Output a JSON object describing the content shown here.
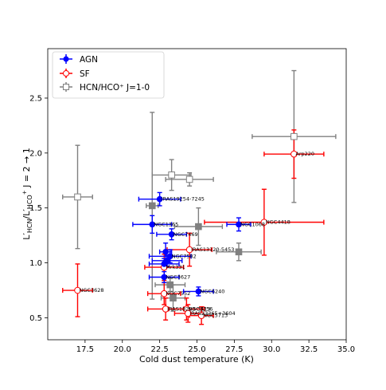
{
  "chart_data": {
    "type": "scatter",
    "title": "",
    "xlabel": "Cold dust temperature (K)",
    "ylabel_main": "L′",
    "ylabel_sub1": "HCN",
    "ylabel_mid": "/L′",
    "ylabel_sub2": "HCO",
    "ylabel_sup": "+",
    "ylabel_tail": " J = 2 → 1",
    "xlim": [
      15.0,
      35.0
    ],
    "ylim": [
      0.3,
      2.95
    ],
    "xticks": [
      "17.5",
      "20.0",
      "22.5",
      "25.0",
      "27.5",
      "30.0",
      "32.5",
      "35.0"
    ],
    "xtick_values": [
      17.5,
      20.0,
      22.5,
      25.0,
      27.5,
      30.0,
      32.5,
      35.0
    ],
    "yticks": [
      "0.5",
      "1.0",
      "1.5",
      "2.0",
      "2.5"
    ],
    "ytick_values": [
      0.5,
      1.0,
      1.5,
      2.0,
      2.5
    ],
    "grid": false,
    "legend_position": "top-left",
    "legend": [
      {
        "label": "AGN",
        "color": "#0000ff",
        "marker": "filled-circle"
      },
      {
        "label": "SF",
        "color": "#ff0000",
        "marker": "open-circle"
      },
      {
        "label": "HCN/HCO⁺ J=1-0",
        "color": "#808080",
        "marker": "open-square"
      }
    ],
    "series": [
      {
        "name": "AGN",
        "color": "#0000ff",
        "points": [
          {
            "label": "IRAS19254-7245",
            "x": 22.5,
            "y": 1.58,
            "xerr": 1.4,
            "yerr": 0.06
          },
          {
            "label": "NGC1365",
            "x": 22.0,
            "y": 1.35,
            "xerr": 1.3,
            "yerr": 0.08
          },
          {
            "label": "NGC7469",
            "x": 23.3,
            "y": 1.26,
            "xerr": 1.0,
            "yerr": 0.05
          },
          {
            "label": "NGC1068",
            "x": 27.8,
            "y": 1.35,
            "xerr": 0.8,
            "yerr": 0.06
          },
          {
            "label": "NGC7582",
            "x": 23.2,
            "y": 1.06,
            "xerr": 1.4,
            "yerr": 0.06
          },
          {
            "label": "",
            "x": 23.0,
            "y": 1.02,
            "xerr": 1.0,
            "yerr": 0.05
          },
          {
            "label": "",
            "x": 22.8,
            "y": 0.99,
            "xerr": 1.0,
            "yerr": 0.05
          },
          {
            "label": "NGC3627",
            "x": 22.8,
            "y": 0.87,
            "xerr": 1.0,
            "yerr": 0.05
          },
          {
            "label": "NGC6240",
            "x": 25.1,
            "y": 0.74,
            "xerr": 1.0,
            "yerr": 0.04
          },
          {
            "label": "",
            "x": 22.9,
            "y": 1.1,
            "xerr": 0.4,
            "yerr": 0.08
          }
        ]
      },
      {
        "name": "SF",
        "color": "#ff0000",
        "points": [
          {
            "label": "NGC3628",
            "x": 17.0,
            "y": 0.75,
            "xerr": 1.0,
            "yerr": 0.24
          },
          {
            "label": "Arp220",
            "x": 31.5,
            "y": 1.99,
            "xerr": 2.0,
            "yerr": 0.22
          },
          {
            "label": "NGC4418",
            "x": 29.5,
            "y": 1.37,
            "xerr": 4.0,
            "yerr": 0.3
          },
          {
            "label": "IRAS13120-5453",
            "x": 24.5,
            "y": 1.12,
            "xerr": 1.5,
            "yerr": 0.15
          },
          {
            "label": "Mrk331",
            "x": 22.8,
            "y": 0.96,
            "xerr": 1.3,
            "yerr": 0.12
          },
          {
            "label": "NGC7552",
            "x": 22.8,
            "y": 0.72,
            "xerr": 1.1,
            "yerr": 0.1
          },
          {
            "label": "IRAS18293-3413",
            "x": 22.9,
            "y": 0.58,
            "xerr": 1.2,
            "yerr": 0.1
          },
          {
            "label": "NGC3256",
            "x": 24.3,
            "y": 0.58,
            "xerr": 1.2,
            "yerr": 0.1
          },
          {
            "label": "IRAS23365+3604",
            "x": 24.4,
            "y": 0.54,
            "xerr": 0.9,
            "yerr": 0.08
          },
          {
            "label": "NGC5713",
            "x": 25.3,
            "y": 0.52,
            "xerr": 0.8,
            "yerr": 0.08
          }
        ]
      },
      {
        "name": "HCN/HCO⁺ J=1-0",
        "color": "#808080",
        "points": [
          {
            "x": 17.0,
            "y": 1.6,
            "xerr": 1.0,
            "yerr": 0.47,
            "filled": false
          },
          {
            "x": 31.5,
            "y": 2.15,
            "xerr": 2.8,
            "yerr": 0.6,
            "filled": false
          },
          {
            "x": 23.3,
            "y": 1.8,
            "xerr": 1.3,
            "yerr": 0.14,
            "filled": false
          },
          {
            "x": 24.5,
            "y": 1.76,
            "xerr": 1.6,
            "yerr": 0.06,
            "filled": false
          },
          {
            "x": 22.0,
            "y": 1.52,
            "xerr": 0.4,
            "yerr": 0.85,
            "filled": true
          },
          {
            "x": 25.1,
            "y": 1.33,
            "xerr": 1.6,
            "yerr": 0.17,
            "filled": true
          },
          {
            "x": 27.8,
            "y": 1.1,
            "xerr": 1.5,
            "yerr": 0.08,
            "filled": true
          },
          {
            "x": 23.2,
            "y": 0.8,
            "xerr": 1.0,
            "yerr": 0.06,
            "filled": true
          },
          {
            "x": 23.4,
            "y": 0.68,
            "xerr": 0.8,
            "yerr": 0.12,
            "filled": true
          }
        ]
      }
    ]
  }
}
